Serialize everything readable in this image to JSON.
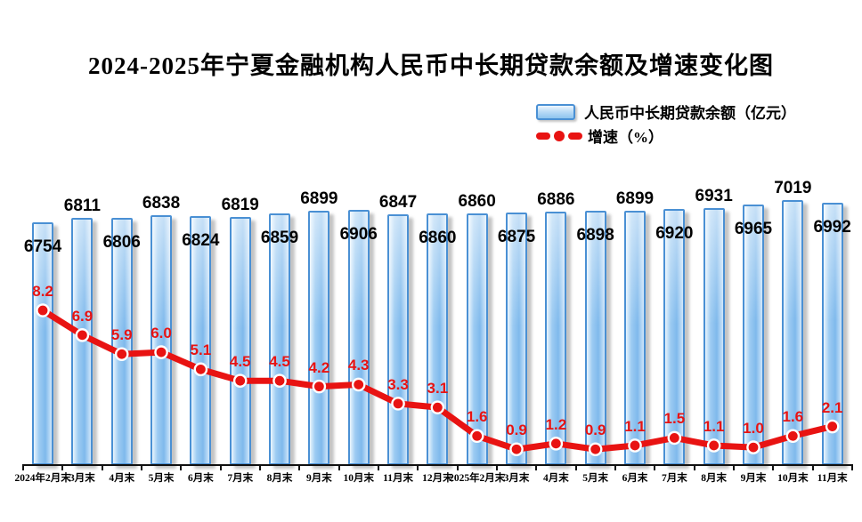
{
  "title": "2024-2025年宁夏金融机构人民币中长期贷款余额及增速变化图",
  "legend": {
    "bar_series_label": "人民币中长期贷款余额（亿元）",
    "line_series_label": "增速（%）"
  },
  "colors": {
    "bar_border": "#4a90d4",
    "bar_fill_light": "#eaf5fd",
    "bar_fill_dark": "#7fb9ec",
    "line_red": "#e81312",
    "value_label": "#000000",
    "axis": "#111111"
  },
  "chart_data": {
    "type": "bar",
    "combo": "bar+line",
    "title": "2024-2025年宁夏金融机构人民币中长期贷款余额及增速变化图",
    "categories": [
      "2024年2月末",
      "3月末",
      "4月末",
      "5月末",
      "6月末",
      "7月末",
      "8月末",
      "9月末",
      "10月末",
      "11月末",
      "12月末",
      "2025年2月末",
      "3月末",
      "4月末",
      "5月末",
      "6月末",
      "7月末",
      "8月末",
      "9月末",
      "10月末",
      "11月末"
    ],
    "series": [
      {
        "name": "人民币中长期贷款余额（亿元）",
        "type": "bar",
        "unit": "亿元",
        "values": [
          6754,
          6811,
          6806,
          6838,
          6824,
          6819,
          6859,
          6899,
          6906,
          6847,
          6860,
          6860,
          6875,
          6886,
          6898,
          6899,
          6920,
          6931,
          6965,
          7019,
          6992
        ]
      },
      {
        "name": "增速（%）",
        "type": "line",
        "unit": "%",
        "values": [
          8.2,
          6.9,
          5.9,
          6.0,
          5.1,
          4.5,
          4.5,
          4.2,
          4.3,
          3.3,
          3.1,
          1.6,
          0.9,
          1.2,
          0.9,
          1.1,
          1.5,
          1.1,
          1.0,
          1.6,
          2.1
        ],
        "labels": [
          "8.2",
          "6.9",
          "5.9",
          "6.0",
          "5.1",
          "4.5",
          "4.5",
          "4.2",
          "4.3",
          "3.3",
          "3.1",
          "1.6",
          "0.9",
          "1.2",
          "0.9",
          "1.1",
          "1.5",
          "1.1",
          "1.0",
          "1.6",
          "2.1"
        ]
      }
    ],
    "legend_position": "top-right",
    "grid": false,
    "value_labels_shown": true,
    "ylim_line": [
      0,
      9
    ],
    "xlabel": "",
    "ylabel": ""
  }
}
